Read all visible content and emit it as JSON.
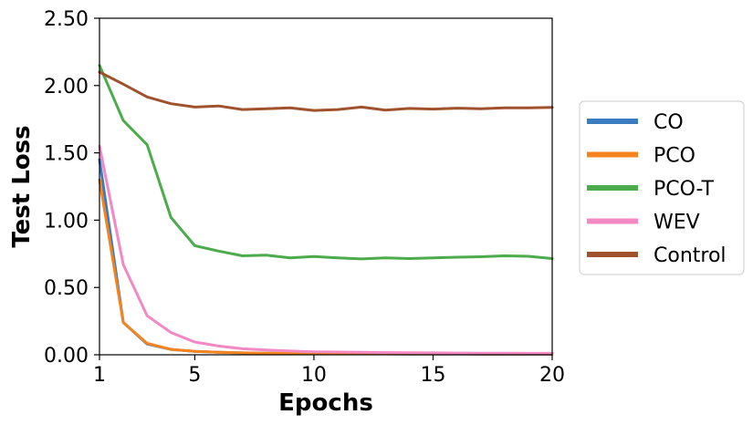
{
  "chart_data": {
    "type": "line",
    "xlabel": "Epochs",
    "ylabel": "Test Loss",
    "xlim": [
      1,
      20
    ],
    "ylim": [
      0,
      2.5
    ],
    "xticks": [
      {
        "value": 1,
        "label": "1"
      },
      {
        "value": 5,
        "label": "5"
      },
      {
        "value": 10,
        "label": "10"
      },
      {
        "value": 15,
        "label": "15"
      },
      {
        "value": 20,
        "label": "20"
      }
    ],
    "yticks": [
      {
        "value": 0,
        "label": "0.00"
      },
      {
        "value": 0.5,
        "label": "0.50"
      },
      {
        "value": 1.0,
        "label": "1.00"
      },
      {
        "value": 1.5,
        "label": "1.50"
      },
      {
        "value": 2.0,
        "label": "2.00"
      },
      {
        "value": 2.5,
        "label": "2.50"
      }
    ],
    "grid": false,
    "legend_position": "right",
    "x": [
      1,
      2,
      3,
      4,
      5,
      6,
      7,
      8,
      9,
      10,
      11,
      12,
      13,
      14,
      15,
      16,
      17,
      18,
      19,
      20
    ],
    "series": [
      {
        "name": "CO",
        "color": "#3b7bbf",
        "values": [
          1.45,
          0.24,
          0.08,
          0.04,
          0.025,
          0.018,
          0.014,
          0.012,
          0.01,
          0.009,
          0.008,
          0.007,
          0.007,
          0.006,
          0.006,
          0.006,
          0.005,
          0.005,
          0.005,
          0.005
        ]
      },
      {
        "name": "PCO",
        "color": "#f5841f",
        "values": [
          1.3,
          0.24,
          0.085,
          0.04,
          0.025,
          0.018,
          0.014,
          0.012,
          0.01,
          0.009,
          0.008,
          0.007,
          0.007,
          0.006,
          0.006,
          0.006,
          0.005,
          0.005,
          0.005,
          0.005
        ]
      },
      {
        "name": "PCO-T",
        "color": "#4cab4a",
        "values": [
          2.15,
          1.74,
          1.56,
          1.02,
          0.81,
          0.77,
          0.735,
          0.74,
          0.72,
          0.73,
          0.72,
          0.712,
          0.72,
          0.715,
          0.72,
          0.725,
          0.728,
          0.735,
          0.732,
          0.715
        ]
      },
      {
        "name": "WEV",
        "color": "#f288c4",
        "values": [
          1.55,
          0.67,
          0.29,
          0.165,
          0.095,
          0.065,
          0.045,
          0.035,
          0.028,
          0.022,
          0.02,
          0.018,
          0.016,
          0.015,
          0.014,
          0.013,
          0.012,
          0.012,
          0.011,
          0.011
        ]
      },
      {
        "name": "Control",
        "color": "#a0522d",
        "values": [
          2.1,
          2.01,
          1.915,
          1.865,
          1.84,
          1.848,
          1.822,
          1.828,
          1.835,
          1.815,
          1.822,
          1.84,
          1.818,
          1.83,
          1.825,
          1.832,
          1.828,
          1.835,
          1.835,
          1.838
        ]
      }
    ]
  }
}
